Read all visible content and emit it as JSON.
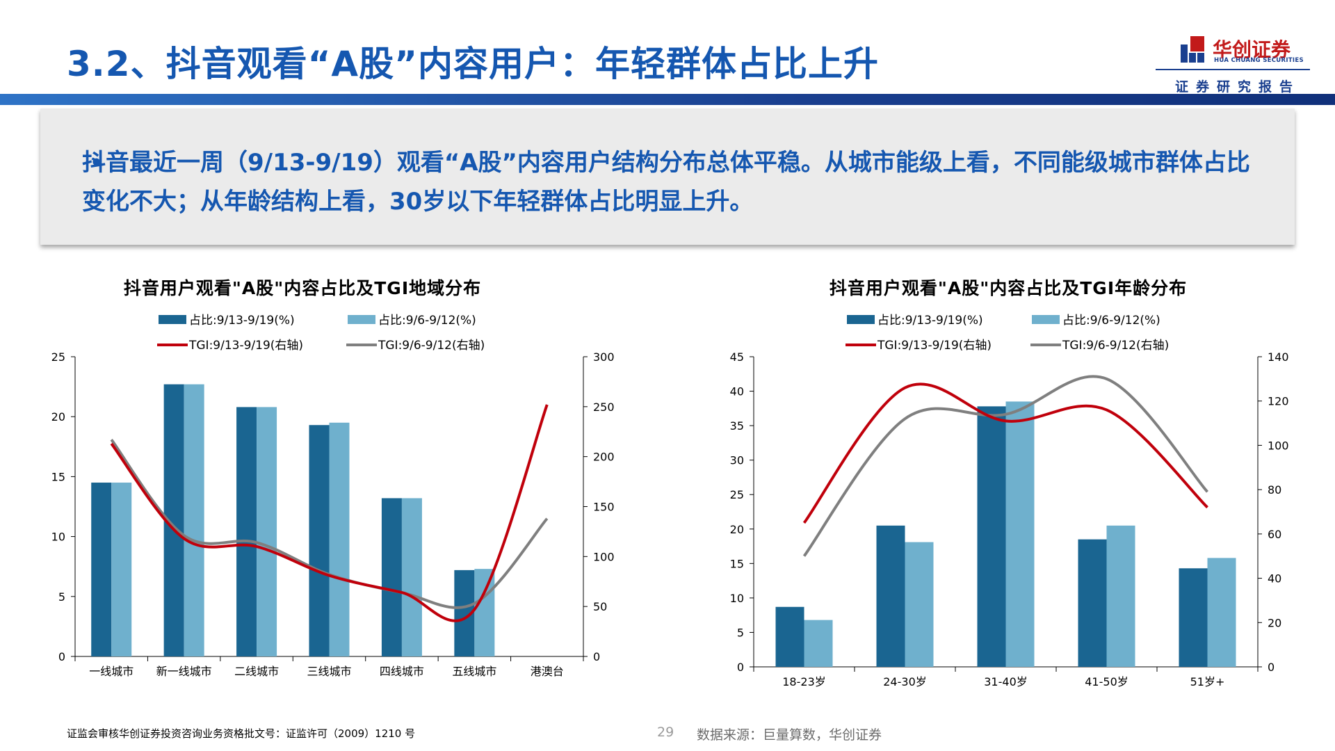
{
  "header": {
    "title": "3.2、抖音观看“A股”内容用户：年轻群体占比上升",
    "logo_cn": "华创证券",
    "logo_en": "HUA CHUANG SECURITIES",
    "logo_sub": "证券研究报告"
  },
  "summary": {
    "text": "抖音最近一周（9/13-9/19）观看“A股”内容用户结构分布总体平稳。从城市能级上看，不同能级城市群体占比变化不大；从年龄结构上看，30岁以下年轻群体占比明显上升。"
  },
  "colors": {
    "title_blue": "#1557b0",
    "bar_dark": "#1a6591",
    "bar_light": "#6fb0cd",
    "line_red": "#c0000b",
    "line_gray": "#7f7f7f"
  },
  "chart_data": [
    {
      "type": "bar",
      "title": "抖音用户观看\"A股\"内容占比及TGI地域分布",
      "categories": [
        "一线城市",
        "新一线城市",
        "二线城市",
        "三线城市",
        "四线城市",
        "五线城市",
        "港澳台"
      ],
      "series": [
        {
          "name": "占比:9/13-9/19(%)",
          "kind": "bar",
          "axis": "left",
          "values": [
            14.5,
            22.7,
            20.8,
            19.3,
            13.2,
            7.2,
            0
          ]
        },
        {
          "name": "占比:9/6-9/12(%)",
          "kind": "bar",
          "axis": "left",
          "values": [
            14.5,
            22.7,
            20.8,
            19.5,
            13.2,
            7.3,
            0
          ]
        },
        {
          "name": "TGI:9/13-9/19(右轴)",
          "kind": "line",
          "axis": "right",
          "values": [
            213,
            118,
            110,
            81,
            64,
            47,
            252
          ]
        },
        {
          "name": "TGI:9/6-9/12(右轴)",
          "kind": "line",
          "axis": "right",
          "values": [
            217,
            121,
            114,
            82,
            64,
            53,
            138
          ]
        }
      ],
      "ylim": [
        0,
        25
      ],
      "yticks": [
        "0",
        "5",
        "10",
        "15",
        "20",
        "25"
      ],
      "y2lim": [
        0,
        300
      ],
      "y2ticks": [
        "0",
        "50",
        "100",
        "150",
        "200",
        "250",
        "300"
      ],
      "legend": "top",
      "grid": false
    },
    {
      "type": "bar",
      "title": "抖音用户观看\"A股\"内容占比及TGI年龄分布",
      "categories": [
        "18-23岁",
        "24-30岁",
        "31-40岁",
        "41-50岁",
        "51岁+"
      ],
      "series": [
        {
          "name": "占比:9/13-9/19(%)",
          "kind": "bar",
          "axis": "left",
          "values": [
            8.7,
            20.5,
            37.8,
            18.5,
            14.3
          ]
        },
        {
          "name": "占比:9/6-9/12(%)",
          "kind": "bar",
          "axis": "left",
          "values": [
            6.8,
            18.1,
            38.5,
            20.5,
            15.8
          ]
        },
        {
          "name": "TGI:9/13-9/19(右轴)",
          "kind": "line",
          "axis": "right",
          "values": [
            65,
            126,
            111,
            116,
            72
          ]
        },
        {
          "name": "TGI:9/6-9/12(右轴)",
          "kind": "line",
          "axis": "right",
          "values": [
            50,
            112,
            114,
            130,
            79
          ]
        }
      ],
      "ylim": [
        0,
        45
      ],
      "yticks": [
        "0",
        "5",
        "10",
        "15",
        "20",
        "25",
        "30",
        "35",
        "40",
        "45"
      ],
      "y2lim": [
        0,
        140
      ],
      "y2ticks": [
        "0",
        "20",
        "40",
        "60",
        "80",
        "100",
        "120",
        "140"
      ],
      "legend": "top",
      "grid": false
    }
  ],
  "footer": {
    "license": "证监会审核华创证券投资咨询业务资格批文号：证监许可（2009）1210 号",
    "page": "29",
    "source": "数据来源：巨量算数，华创证券"
  }
}
